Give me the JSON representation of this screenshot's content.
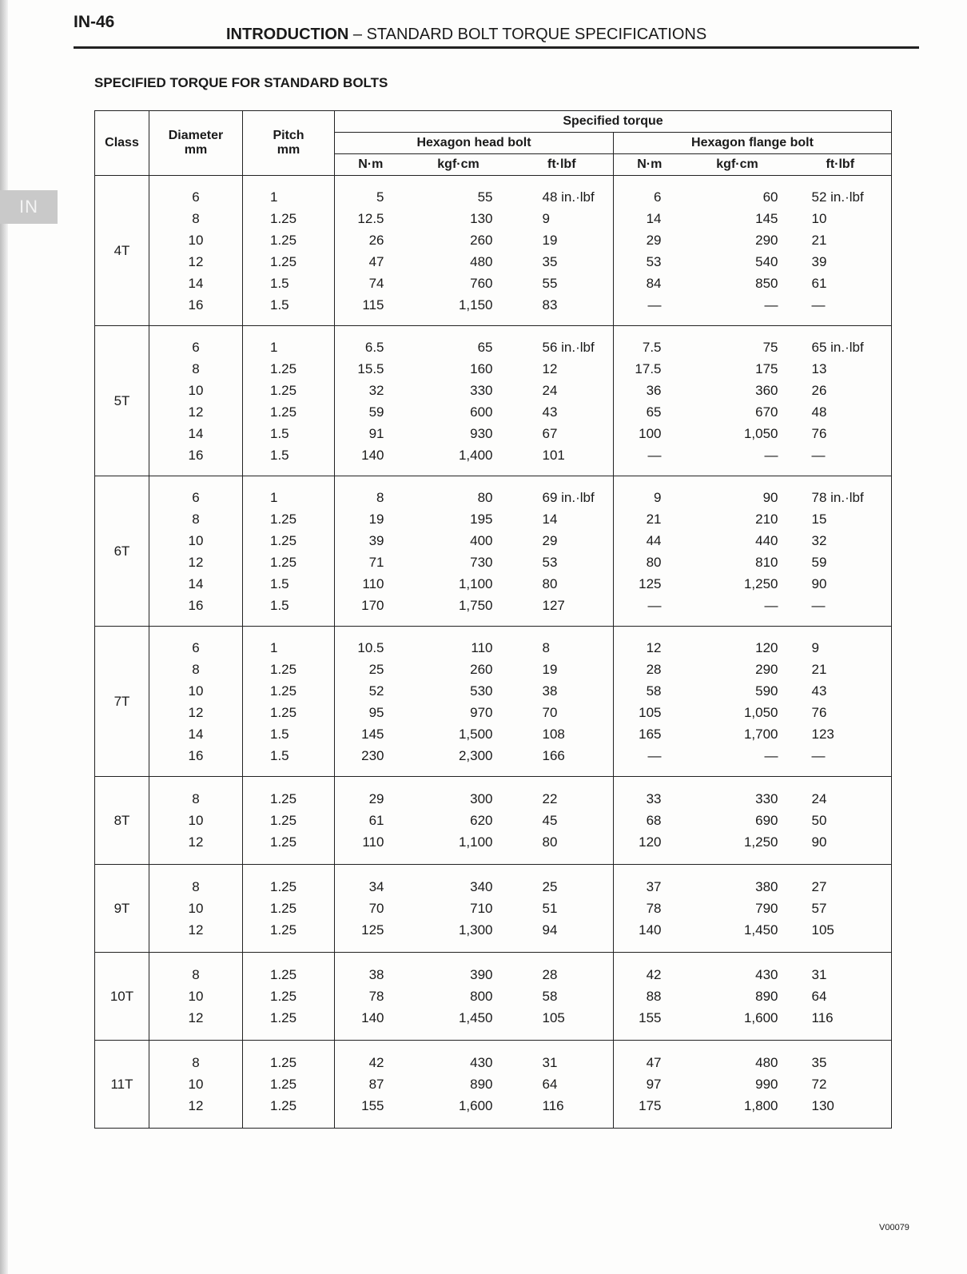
{
  "page_number": "IN-46",
  "header": {
    "section": "INTRODUCTION",
    "subtitle": "– STANDARD BOLT TORQUE SPECIFICATIONS"
  },
  "side_tab": "IN",
  "section_title": "SPECIFIED TORQUE FOR STANDARD BOLTS",
  "table": {
    "headers": {
      "class": "Class",
      "diameter": "Diameter",
      "diameter_unit": "mm",
      "pitch": "Pitch",
      "pitch_unit": "mm",
      "specified_torque": "Specified torque",
      "hex_head": "Hexagon head bolt",
      "hex_flange": "Hexagon flange bolt",
      "units": [
        "N·m",
        "kgf·cm",
        "ft·lbf",
        "N·m",
        "kgf·cm",
        "ft·lbf"
      ]
    },
    "groups": [
      {
        "class": "4T",
        "rows": [
          [
            "6",
            "1",
            "5",
            "55",
            "48 in.·lbf",
            "6",
            "60",
            "52 in.·lbf"
          ],
          [
            "8",
            "1.25",
            "12.5",
            "130",
            "9",
            "14",
            "145",
            "10"
          ],
          [
            "10",
            "1.25",
            "26",
            "260",
            "19",
            "29",
            "290",
            "21"
          ],
          [
            "12",
            "1.25",
            "47",
            "480",
            "35",
            "53",
            "540",
            "39"
          ],
          [
            "14",
            "1.5",
            "74",
            "760",
            "55",
            "84",
            "850",
            "61"
          ],
          [
            "16",
            "1.5",
            "115",
            "1,150",
            "83",
            "—",
            "—",
            "—"
          ]
        ]
      },
      {
        "class": "5T",
        "rows": [
          [
            "6",
            "1",
            "6.5",
            "65",
            "56 in.·lbf",
            "7.5",
            "75",
            "65 in.·lbf"
          ],
          [
            "8",
            "1.25",
            "15.5",
            "160",
            "12",
            "17.5",
            "175",
            "13"
          ],
          [
            "10",
            "1.25",
            "32",
            "330",
            "24",
            "36",
            "360",
            "26"
          ],
          [
            "12",
            "1.25",
            "59",
            "600",
            "43",
            "65",
            "670",
            "48"
          ],
          [
            "14",
            "1.5",
            "91",
            "930",
            "67",
            "100",
            "1,050",
            "76"
          ],
          [
            "16",
            "1.5",
            "140",
            "1,400",
            "101",
            "—",
            "—",
            "—"
          ]
        ]
      },
      {
        "class": "6T",
        "rows": [
          [
            "6",
            "1",
            "8",
            "80",
            "69 in.·lbf",
            "9",
            "90",
            "78 in.·lbf"
          ],
          [
            "8",
            "1.25",
            "19",
            "195",
            "14",
            "21",
            "210",
            "15"
          ],
          [
            "10",
            "1.25",
            "39",
            "400",
            "29",
            "44",
            "440",
            "32"
          ],
          [
            "12",
            "1.25",
            "71",
            "730",
            "53",
            "80",
            "810",
            "59"
          ],
          [
            "14",
            "1.5",
            "110",
            "1,100",
            "80",
            "125",
            "1,250",
            "90"
          ],
          [
            "16",
            "1.5",
            "170",
            "1,750",
            "127",
            "—",
            "—",
            "—"
          ]
        ]
      },
      {
        "class": "7T",
        "rows": [
          [
            "6",
            "1",
            "10.5",
            "110",
            "8",
            "12",
            "120",
            "9"
          ],
          [
            "8",
            "1.25",
            "25",
            "260",
            "19",
            "28",
            "290",
            "21"
          ],
          [
            "10",
            "1.25",
            "52",
            "530",
            "38",
            "58",
            "590",
            "43"
          ],
          [
            "12",
            "1.25",
            "95",
            "970",
            "70",
            "105",
            "1,050",
            "76"
          ],
          [
            "14",
            "1.5",
            "145",
            "1,500",
            "108",
            "165",
            "1,700",
            "123"
          ],
          [
            "16",
            "1.5",
            "230",
            "2,300",
            "166",
            "—",
            "—",
            "—"
          ]
        ]
      },
      {
        "class": "8T",
        "rows": [
          [
            "8",
            "1.25",
            "29",
            "300",
            "22",
            "33",
            "330",
            "24"
          ],
          [
            "10",
            "1.25",
            "61",
            "620",
            "45",
            "68",
            "690",
            "50"
          ],
          [
            "12",
            "1.25",
            "110",
            "1,100",
            "80",
            "120",
            "1,250",
            "90"
          ]
        ]
      },
      {
        "class": "9T",
        "rows": [
          [
            "8",
            "1.25",
            "34",
            "340",
            "25",
            "37",
            "380",
            "27"
          ],
          [
            "10",
            "1.25",
            "70",
            "710",
            "51",
            "78",
            "790",
            "57"
          ],
          [
            "12",
            "1.25",
            "125",
            "1,300",
            "94",
            "140",
            "1,450",
            "105"
          ]
        ]
      },
      {
        "class": "10T",
        "rows": [
          [
            "8",
            "1.25",
            "38",
            "390",
            "28",
            "42",
            "430",
            "31"
          ],
          [
            "10",
            "1.25",
            "78",
            "800",
            "58",
            "88",
            "890",
            "64"
          ],
          [
            "12",
            "1.25",
            "140",
            "1,450",
            "105",
            "155",
            "1,600",
            "116"
          ]
        ]
      },
      {
        "class": "11T",
        "rows": [
          [
            "8",
            "1.25",
            "42",
            "430",
            "31",
            "47",
            "480",
            "35"
          ],
          [
            "10",
            "1.25",
            "87",
            "890",
            "64",
            "97",
            "990",
            "72"
          ],
          [
            "12",
            "1.25",
            "155",
            "1,600",
            "116",
            "175",
            "1,800",
            "130"
          ]
        ]
      }
    ]
  },
  "footer_code": "V00079"
}
